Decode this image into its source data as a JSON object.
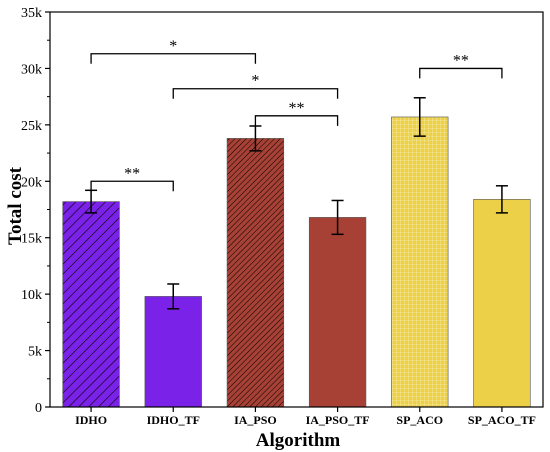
{
  "chart_data": {
    "type": "bar",
    "xlabel": "Algorithm",
    "ylabel": "Total cost",
    "ylim": [
      0,
      35000
    ],
    "yticks": [
      0,
      5000,
      10000,
      15000,
      20000,
      25000,
      30000,
      35000
    ],
    "ytick_labels": [
      "0",
      "5k",
      "10k",
      "15k",
      "20k",
      "25k",
      "30k",
      "35k"
    ],
    "categories": [
      "IDHO",
      "IDHO_TF",
      "IA_PSO",
      "IA_PSO_TF",
      "SP_ACO",
      "SP_ACO_TF"
    ],
    "values": [
      18200,
      9800,
      23800,
      16800,
      25700,
      18400
    ],
    "errors": [
      1000,
      1100,
      1100,
      1500,
      1700,
      1200
    ],
    "bar_colors": [
      "#7b22e8",
      "#7b22e8",
      "#a84135",
      "#a84135",
      "#ecd048",
      "#ecd048"
    ],
    "bar_patterns": [
      "diagonal-stripes",
      "none",
      "dense-diagonal-stripes",
      "none",
      "grid",
      "none"
    ],
    "significance": [
      {
        "from": 0,
        "to": 1,
        "label": "**",
        "y": 20000
      },
      {
        "from": 0,
        "to": 2,
        "label": "*",
        "y": 31300
      },
      {
        "from": 1,
        "to": 3,
        "label": "*",
        "y": 28200
      },
      {
        "from": 2,
        "to": 3,
        "label": "**",
        "y": 25800
      },
      {
        "from": 4,
        "to": 5,
        "label": "**",
        "y": 30000
      }
    ],
    "grid": false,
    "legend": "none"
  }
}
